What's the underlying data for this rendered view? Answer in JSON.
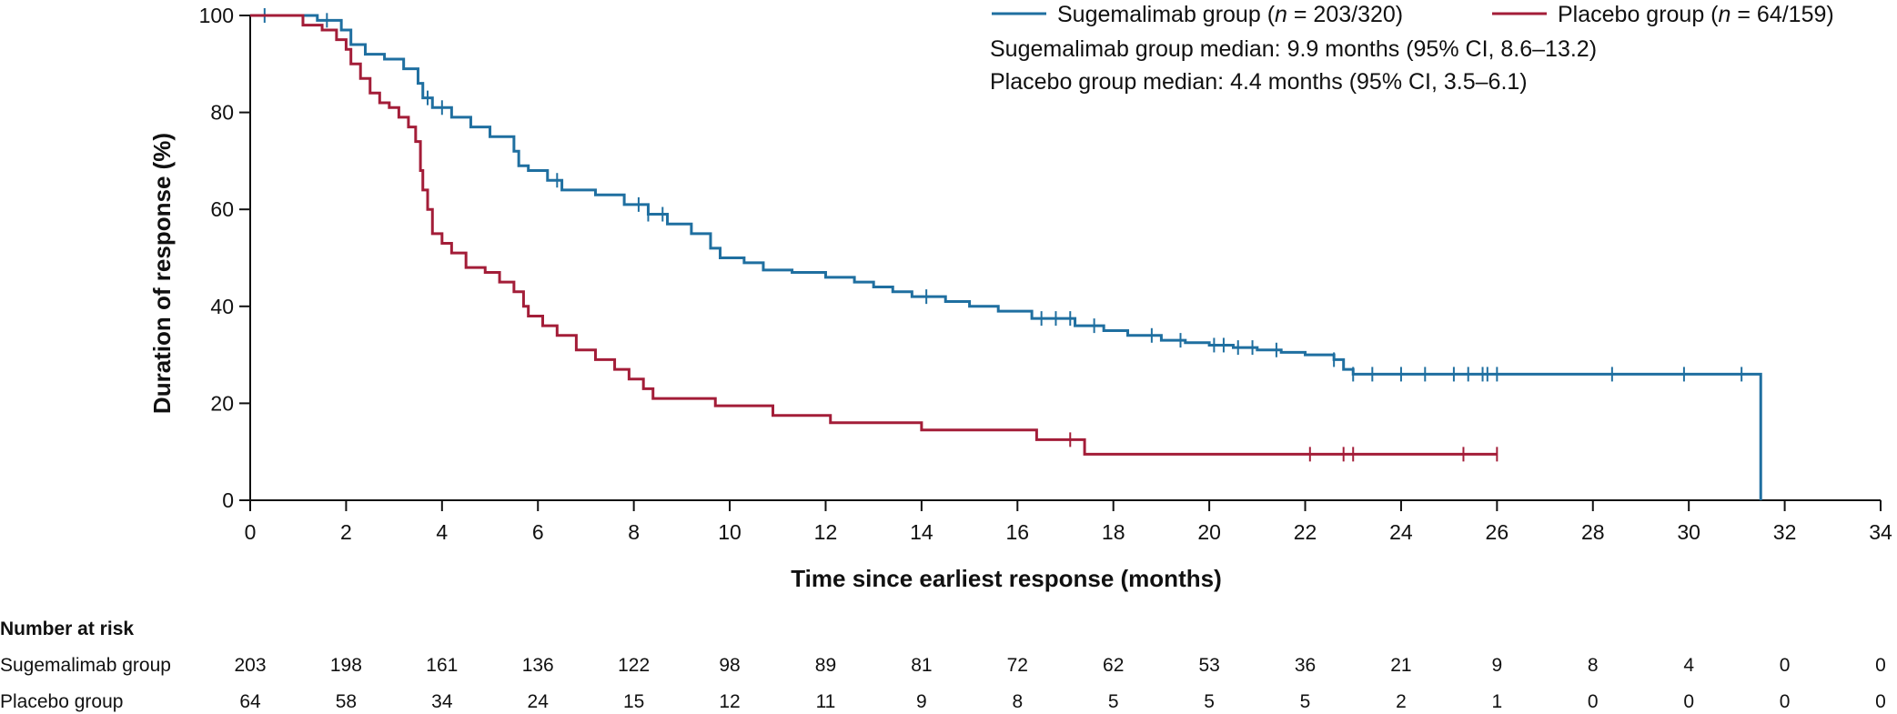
{
  "chart_data": {
    "type": "line",
    "subtype": "kaplan-meier",
    "xlabel": "Time since earliest response (months)",
    "ylabel": "Duration of response (%)",
    "xlim": [
      0,
      34
    ],
    "ylim": [
      0,
      100
    ],
    "xticks": [
      0,
      2,
      4,
      6,
      8,
      10,
      12,
      14,
      16,
      18,
      20,
      22,
      24,
      26,
      28,
      30,
      32,
      34
    ],
    "yticks": [
      0,
      20,
      40,
      60,
      80,
      100
    ],
    "legend": {
      "placement": "top-right",
      "entries": [
        {
          "prefix": "Sugemalimab group (",
          "italic": "n",
          "suffix": " = 203/320)",
          "color": "#1f6fa0"
        },
        {
          "prefix": "Placebo group (",
          "italic": "n",
          "suffix": " = 64/159)",
          "color": "#a31d38"
        }
      ],
      "annotations": [
        "Sugemalimab group median: 9.9 months (95% CI, 8.6–13.2)",
        "Placebo group median: 4.4 months (95% CI, 3.5–6.1)"
      ]
    },
    "series": [
      {
        "name": "Sugemalimab group",
        "color": "#1f6fa0",
        "x": [
          0,
          1.4,
          1.9,
          2.1,
          2.4,
          2.8,
          3.2,
          3.5,
          3.6,
          3.8,
          4.2,
          4.6,
          5.0,
          5.5,
          5.6,
          5.8,
          6.2,
          6.5,
          7.2,
          7.8,
          8.3,
          8.7,
          9.2,
          9.6,
          9.8,
          10.3,
          10.7,
          11.3,
          12.0,
          12.6,
          13.0,
          13.4,
          13.8,
          14.5,
          15.0,
          15.6,
          16.3,
          17.2,
          17.8,
          18.3,
          19.0,
          19.5,
          20.0,
          20.5,
          21.0,
          21.5,
          22.0,
          22.6,
          22.8,
          23.0,
          31.5,
          31.5
        ],
        "y": [
          100,
          99,
          97,
          94,
          92,
          91,
          89,
          86,
          83,
          81,
          79,
          77,
          75,
          72,
          69,
          68,
          66,
          64,
          63,
          61,
          59,
          57,
          55,
          52,
          50,
          49,
          47.5,
          47,
          46,
          45,
          44,
          43,
          42,
          41,
          40,
          39,
          37.5,
          36,
          35,
          34,
          33,
          32.5,
          32,
          31.5,
          31,
          30.5,
          30,
          29,
          27,
          26,
          26,
          0
        ],
        "censor_x": [
          0.3,
          1.6,
          3.7,
          4.0,
          6.4,
          8.1,
          8.3,
          8.6,
          14.1,
          16.5,
          16.8,
          17.1,
          17.6,
          18.8,
          19.4,
          20.1,
          20.3,
          20.6,
          20.9,
          21.4,
          22.6,
          23.0,
          23.4,
          24.0,
          24.5,
          25.1,
          25.4,
          25.7,
          25.8,
          26.0,
          28.4,
          29.9,
          31.1
        ],
        "risk": [
          203,
          198,
          161,
          136,
          122,
          98,
          89,
          81,
          72,
          62,
          53,
          36,
          21,
          9,
          8,
          4,
          0,
          0
        ]
      },
      {
        "name": "Placebo group",
        "color": "#a31d38",
        "x": [
          0,
          1.1,
          1.5,
          1.8,
          2.0,
          2.1,
          2.3,
          2.5,
          2.7,
          2.9,
          3.1,
          3.3,
          3.45,
          3.55,
          3.6,
          3.7,
          3.8,
          4.0,
          4.2,
          4.5,
          4.9,
          5.2,
          5.5,
          5.7,
          5.8,
          6.1,
          6.4,
          6.8,
          7.2,
          7.6,
          7.9,
          8.2,
          8.4,
          9.7,
          10.9,
          12.1,
          14.0,
          16.4,
          17.4,
          26.0
        ],
        "y": [
          100,
          98,
          97,
          95,
          93,
          90,
          87,
          84,
          82,
          81,
          79,
          77,
          74,
          68,
          64,
          60,
          55,
          53,
          51,
          48,
          47,
          45,
          43,
          40,
          38,
          36,
          34,
          31,
          29,
          27,
          25,
          23,
          21,
          19.5,
          17.5,
          16,
          14.5,
          12.5,
          9.5,
          9.5
        ],
        "censor_x": [
          17.1,
          22.1,
          22.8,
          23.0,
          25.3,
          26.0
        ],
        "risk": [
          64,
          58,
          34,
          24,
          15,
          12,
          11,
          9,
          8,
          5,
          5,
          5,
          2,
          1,
          0,
          0,
          0,
          0
        ]
      }
    ],
    "risk_table": {
      "title": "Number at risk",
      "times": [
        0,
        2,
        4,
        6,
        8,
        10,
        12,
        14,
        16,
        18,
        20,
        22,
        24,
        26,
        28,
        30,
        32,
        34
      ]
    }
  }
}
